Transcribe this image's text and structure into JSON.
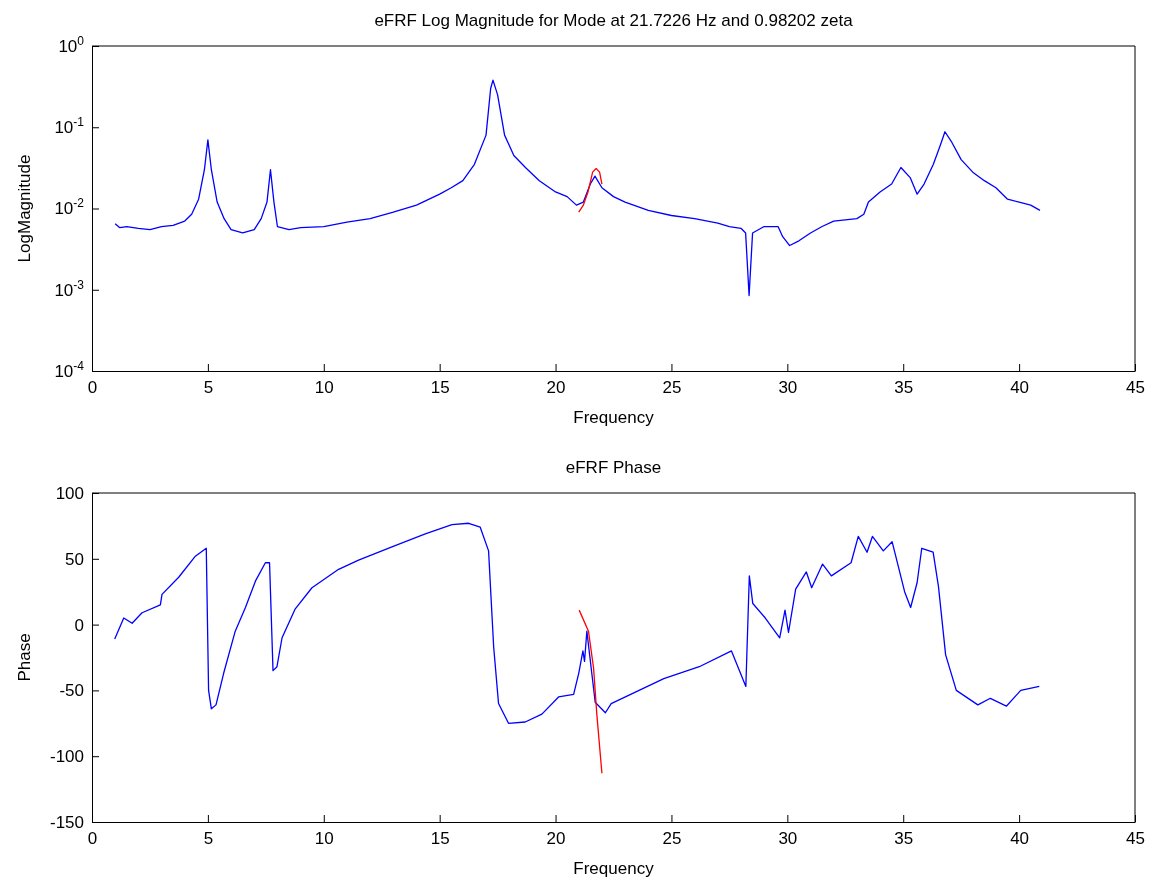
{
  "chart_data": [
    {
      "type": "line",
      "title": "eFRF Log Magnitude for Mode at 21.7226 Hz and 0.98202 zeta",
      "xlabel": "Frequency",
      "ylabel": "LogMagnitude",
      "log": "y",
      "grid": false,
      "marker": "none",
      "line_style": "solid",
      "xlim": [
        0,
        45
      ],
      "xticks": [
        0,
        5,
        10,
        15,
        20,
        25,
        30,
        35,
        40,
        45
      ],
      "ylim": [
        0.0001,
        1
      ],
      "yticks": [
        {
          "value": 0.0001,
          "label": "10$^{-4}$"
        },
        {
          "value": 0.001,
          "label": "10$^{-3}$"
        },
        {
          "value": 0.01,
          "label": "10$^{-2}$"
        },
        {
          "value": 0.1,
          "label": "10$^{-1}$"
        },
        {
          "value": 1,
          "label": "10$^{0}$"
        }
      ],
      "series": [
        {
          "color": "#0000ff",
          "x": [
            1,
            1.2,
            1.5,
            2,
            2.5,
            3,
            3.5,
            4,
            4.3,
            4.6,
            4.85,
            5,
            5.15,
            5.4,
            5.7,
            6,
            6.5,
            7,
            7.3,
            7.55,
            7.7,
            7.85,
            8,
            8.5,
            9,
            10,
            11,
            12,
            13,
            14,
            15,
            15.5,
            16,
            16.5,
            17,
            17.2,
            17.3,
            17.5,
            17.8,
            18.2,
            18.7,
            19.3,
            20,
            20.5,
            20.9,
            21.2,
            21.5,
            21.7,
            22,
            22.5,
            23,
            24,
            25,
            26,
            27,
            27.5,
            28,
            28.2,
            28.35,
            28.5,
            29,
            29.6,
            29.8,
            30.1,
            30.5,
            31,
            31.5,
            32,
            33,
            33.3,
            33.5,
            34,
            34.5,
            34.9,
            35.3,
            35.6,
            35.9,
            36.3,
            36.6,
            36.8,
            37.1,
            37.5,
            38,
            38.5,
            39,
            39.5,
            40,
            40.5,
            40.9
          ],
          "values": [
            0.0065,
            0.0058,
            0.006,
            0.0057,
            0.0055,
            0.006,
            0.0062,
            0.007,
            0.0085,
            0.013,
            0.03,
            0.07,
            0.03,
            0.012,
            0.0075,
            0.0055,
            0.005,
            0.0055,
            0.0075,
            0.012,
            0.03,
            0.012,
            0.006,
            0.0055,
            0.0058,
            0.006,
            0.0068,
            0.0075,
            0.009,
            0.011,
            0.015,
            0.018,
            0.022,
            0.035,
            0.08,
            0.3,
            0.38,
            0.25,
            0.08,
            0.045,
            0.032,
            0.022,
            0.016,
            0.014,
            0.011,
            0.012,
            0.02,
            0.025,
            0.018,
            0.014,
            0.012,
            0.0095,
            0.0082,
            0.0075,
            0.0066,
            0.006,
            0.0057,
            0.005,
            0.00085,
            0.005,
            0.006,
            0.006,
            0.0045,
            0.0035,
            0.004,
            0.005,
            0.006,
            0.007,
            0.0075,
            0.0085,
            0.012,
            0.016,
            0.02,
            0.032,
            0.024,
            0.015,
            0.02,
            0.035,
            0.06,
            0.088,
            0.065,
            0.04,
            0.028,
            0.022,
            0.018,
            0.013,
            0.012,
            0.011,
            0.0095
          ]
        },
        {
          "color": "#ff0000",
          "x": [
            21,
            21.2,
            21.4,
            21.6,
            21.75,
            21.9,
            22
          ],
          "values": [
            0.009,
            0.011,
            0.016,
            0.028,
            0.031,
            0.028,
            0.02
          ]
        }
      ]
    },
    {
      "type": "line",
      "title": "eFRF Phase",
      "xlabel": "Frequency",
      "ylabel": "Phase",
      "grid": false,
      "marker": "none",
      "line_style": "solid",
      "xlim": [
        0,
        45
      ],
      "xticks": [
        0,
        5,
        10,
        15,
        20,
        25,
        30,
        35,
        40,
        45
      ],
      "ylim": [
        -150,
        100
      ],
      "yticks": [
        -150,
        -100,
        -50,
        0,
        50,
        100
      ],
      "series": [
        {
          "color": "#0000ff",
          "x": [
            0.98,
            1.37,
            1.73,
            2.16,
            2.95,
            3.02,
            3.74,
            4.46,
            4.93,
            5.03,
            5.15,
            5.35,
            5.68,
            6.18,
            6.62,
            7.05,
            7.48,
            7.66,
            7.81,
            7.98,
            8.2,
            8.77,
            9.49,
            10.64,
            11.5,
            12.94,
            14.38,
            15.53,
            16.25,
            16.75,
            17.11,
            17.33,
            17.54,
            17.97,
            18.69,
            19.41,
            20.13,
            20.78,
            21,
            21.18,
            21.25,
            21.35,
            21.71,
            22.15,
            22.4,
            24.67,
            26.2,
            27.59,
            28.21,
            28.36,
            28.51,
            29.05,
            29.67,
            29.9,
            30.05,
            30.36,
            30.82,
            31.05,
            31.52,
            31.9,
            32.75,
            33.06,
            33.44,
            33.67,
            34.14,
            34.52,
            35.06,
            35.32,
            35.6,
            35.8,
            36.29,
            36.52,
            36.83,
            37.29,
            38.22,
            38.76,
            39.45,
            40.07,
            40.87
          ],
          "values": [
            -11,
            5,
            1,
            9,
            15,
            23,
            36,
            52,
            58,
            -50,
            -64,
            -61,
            -37,
            -5,
            13,
            33,
            47,
            47,
            -35,
            -32,
            -10,
            12,
            28,
            42,
            49,
            59,
            69,
            76,
            77,
            74,
            56,
            -17,
            -60,
            -75,
            -74,
            -68,
            -55,
            -53,
            -37,
            -20,
            -28,
            -5,
            -59,
            -67,
            -60,
            -41,
            -32,
            -20,
            -47,
            37,
            16,
            5,
            -10,
            11,
            -6,
            27,
            40,
            28,
            46,
            37,
            47,
            67,
            55,
            67,
            56,
            63,
            25,
            13,
            32,
            58,
            55,
            29,
            -23,
            -50,
            -61,
            -56,
            -62,
            -50,
            -47
          ]
        },
        {
          "color": "#ff0000",
          "x": [
            21.02,
            21.42,
            21.64,
            21.78,
            22
          ],
          "values": [
            11,
            -5,
            -33,
            -68,
            -113
          ]
        }
      ]
    }
  ]
}
